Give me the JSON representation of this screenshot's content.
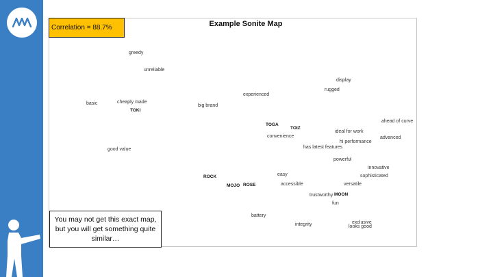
{
  "colors": {
    "sidebar": "#3a7ec3",
    "correlation_box": "#ffc000"
  },
  "sidebar": {
    "logo_icon": "mw-logo-icon",
    "figure_icon": "pointing-person-icon"
  },
  "correlation": {
    "label": "Correlation = ",
    "value": "88.7%"
  },
  "map": {
    "title": "Example Sonite Map",
    "attributes": [
      "greedy",
      "unreliable",
      "display",
      "rugged",
      "experienced",
      "basic",
      "cheaply made",
      "big brand",
      "ahead of curve",
      "ideal for work",
      "convenience",
      "advanced",
      "hi performance",
      "has latest features",
      "good value",
      "powerful",
      "innovative",
      "sophisticated",
      "easy",
      "accessible",
      "versatile",
      "trustworthy",
      "fun",
      "battery",
      "integrity",
      "exclusive",
      "looks good"
    ],
    "brands": [
      "TOKI",
      "TOGA",
      "TOIZ",
      "ROCK",
      "MOJO",
      "ROSE",
      "MOON"
    ]
  },
  "note": "You may not get this exact map, but you will get something quite similar…"
}
